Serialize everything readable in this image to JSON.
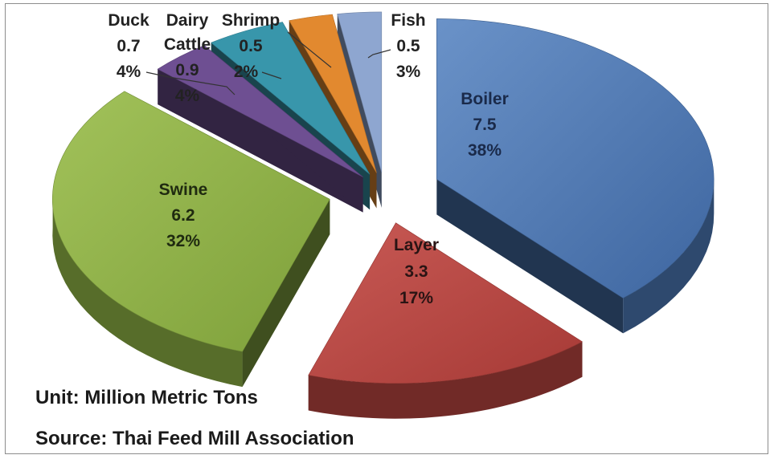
{
  "chart_data": {
    "type": "pie",
    "style": "3d-exploded",
    "title": "",
    "slices": [
      {
        "name": "Boiler",
        "value": 7.5,
        "value_label": "7.5",
        "percent_label": "38%",
        "color": "#4a76b2"
      },
      {
        "name": "Layer",
        "value": 3.3,
        "value_label": "3.3",
        "percent_label": "17%",
        "color": "#b6443f"
      },
      {
        "name": "Swine",
        "value": 6.2,
        "value_label": "6.2",
        "percent_label": "32%",
        "color": "#8caf44"
      },
      {
        "name": "Duck",
        "value": 0.7,
        "value_label": "0.7",
        "percent_label": "4%",
        "color": "#6e4f92"
      },
      {
        "name": "Dairy Cattle",
        "value": 0.9,
        "value_label": "0.9",
        "percent_label": "4%",
        "color": "#3896ab"
      },
      {
        "name": "Shrimp",
        "value": 0.5,
        "value_label": "0.5",
        "percent_label": "2%",
        "color": "#e2892f"
      },
      {
        "name": "Fish",
        "value": 0.5,
        "value_label": "0.5",
        "percent_label": "3%",
        "color": "#8ea6d0"
      }
    ],
    "label_text": {
      "duck_name": "Duck",
      "dairy_line1": "Dairy",
      "dairy_line2": "Cattle",
      "shrimp_name": "Shrimp",
      "fish_name": "Fish"
    }
  },
  "notes": {
    "unit": "Unit: Million Metric Tons",
    "source": "Source: Thai Feed Mill Association"
  }
}
